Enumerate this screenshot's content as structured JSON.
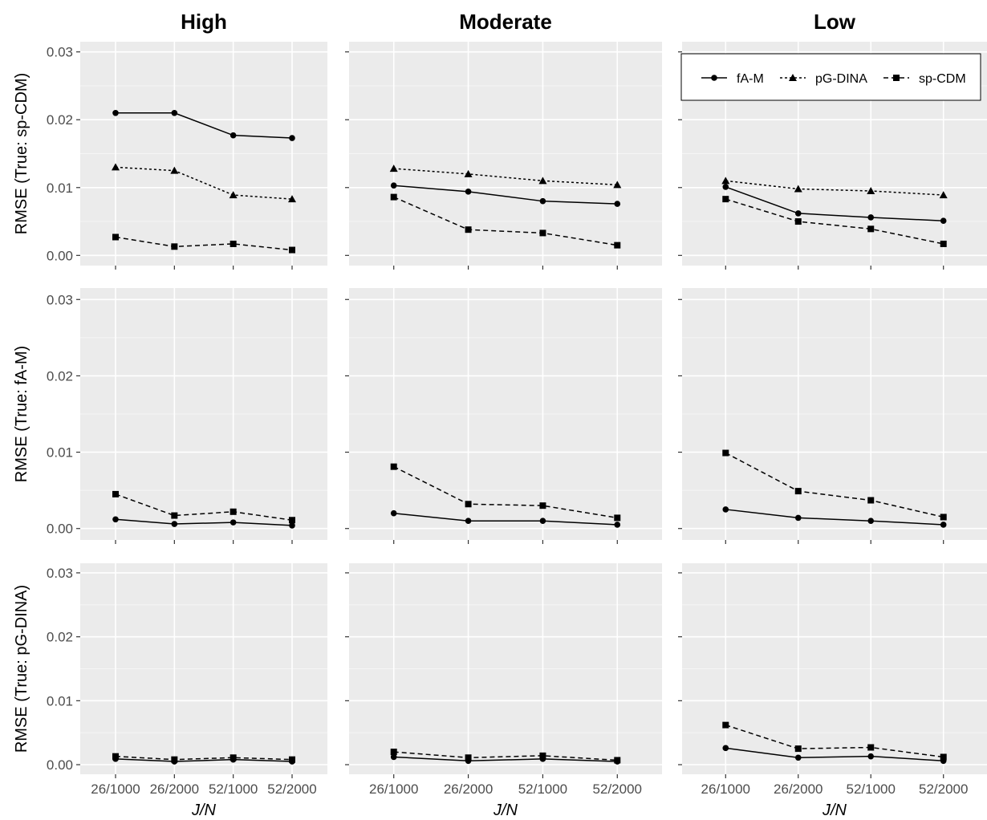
{
  "chart_data": {
    "type": "line",
    "layout": "facet-grid",
    "columns": [
      "High",
      "Moderate",
      "Low"
    ],
    "rows": [
      {
        "ylabel": "RMSE (True: sp-CDM)"
      },
      {
        "ylabel": "RMSE (True: fA-M)"
      },
      {
        "ylabel": "RMSE (True: pG-DINA)"
      }
    ],
    "xlabel": "J/N",
    "categories": [
      "26/1000",
      "26/2000",
      "52/1000",
      "52/2000"
    ],
    "ylim": [
      -0.0015,
      0.0315
    ],
    "yticks": [
      "0.00",
      "0.01",
      "0.02",
      "0.03"
    ],
    "ytick_values": [
      0,
      0.01,
      0.02,
      0.03
    ],
    "grid": true,
    "legend_position": "top-right",
    "series_style": {
      "fA-M": {
        "linetype": "solid",
        "marker": "circle",
        "color": "#000000"
      },
      "pG-DINA": {
        "linetype": "dotted",
        "marker": "triangle",
        "color": "#000000"
      },
      "sp-CDM": {
        "linetype": "dashed",
        "marker": "square",
        "color": "#000000"
      }
    },
    "legend": [
      "fA-M",
      "pG-DINA",
      "sp-CDM"
    ],
    "panels": [
      {
        "row": 0,
        "col": 0,
        "series": [
          {
            "name": "fA-M",
            "values": [
              0.021,
              0.021,
              0.0177,
              0.0173
            ]
          },
          {
            "name": "pG-DINA",
            "values": [
              0.013,
              0.0125,
              0.0089,
              0.0083
            ]
          },
          {
            "name": "sp-CDM",
            "values": [
              0.0027,
              0.0013,
              0.0017,
              0.0008
            ]
          }
        ]
      },
      {
        "row": 0,
        "col": 1,
        "series": [
          {
            "name": "fA-M",
            "values": [
              0.0103,
              0.0094,
              0.008,
              0.0076
            ]
          },
          {
            "name": "pG-DINA",
            "values": [
              0.0128,
              0.012,
              0.011,
              0.0104
            ]
          },
          {
            "name": "sp-CDM",
            "values": [
              0.0086,
              0.0038,
              0.0033,
              0.0015
            ]
          }
        ]
      },
      {
        "row": 0,
        "col": 2,
        "series": [
          {
            "name": "fA-M",
            "values": [
              0.0101,
              0.0062,
              0.0056,
              0.0051
            ]
          },
          {
            "name": "pG-DINA",
            "values": [
              0.011,
              0.0098,
              0.0095,
              0.0089
            ]
          },
          {
            "name": "sp-CDM",
            "values": [
              0.0083,
              0.005,
              0.0039,
              0.0017
            ]
          }
        ]
      },
      {
        "row": 1,
        "col": 0,
        "series": [
          {
            "name": "fA-M",
            "values": [
              0.0012,
              0.0006,
              0.0008,
              0.0004
            ]
          },
          {
            "name": "sp-CDM",
            "values": [
              0.0045,
              0.0017,
              0.0022,
              0.0011
            ]
          }
        ]
      },
      {
        "row": 1,
        "col": 1,
        "series": [
          {
            "name": "fA-M",
            "values": [
              0.002,
              0.001,
              0.001,
              0.0005
            ]
          },
          {
            "name": "sp-CDM",
            "values": [
              0.0081,
              0.0032,
              0.003,
              0.0014
            ]
          }
        ]
      },
      {
        "row": 1,
        "col": 2,
        "series": [
          {
            "name": "fA-M",
            "values": [
              0.0025,
              0.0014,
              0.001,
              0.0005
            ]
          },
          {
            "name": "sp-CDM",
            "values": [
              0.0099,
              0.0049,
              0.0037,
              0.0015
            ]
          }
        ]
      },
      {
        "row": 2,
        "col": 0,
        "series": [
          {
            "name": "fA-M",
            "values": [
              0.0009,
              0.0005,
              0.0008,
              0.0005
            ]
          },
          {
            "name": "sp-CDM",
            "values": [
              0.0013,
              0.0008,
              0.0011,
              0.0008
            ]
          }
        ]
      },
      {
        "row": 2,
        "col": 1,
        "series": [
          {
            "name": "fA-M",
            "values": [
              0.0012,
              0.0006,
              0.0009,
              0.0005
            ]
          },
          {
            "name": "sp-CDM",
            "values": [
              0.002,
              0.0011,
              0.0014,
              0.0007
            ]
          }
        ]
      },
      {
        "row": 2,
        "col": 2,
        "series": [
          {
            "name": "fA-M",
            "values": [
              0.0026,
              0.0011,
              0.0013,
              0.0006
            ]
          },
          {
            "name": "sp-CDM",
            "values": [
              0.0062,
              0.0025,
              0.0027,
              0.0012
            ]
          }
        ]
      }
    ]
  }
}
